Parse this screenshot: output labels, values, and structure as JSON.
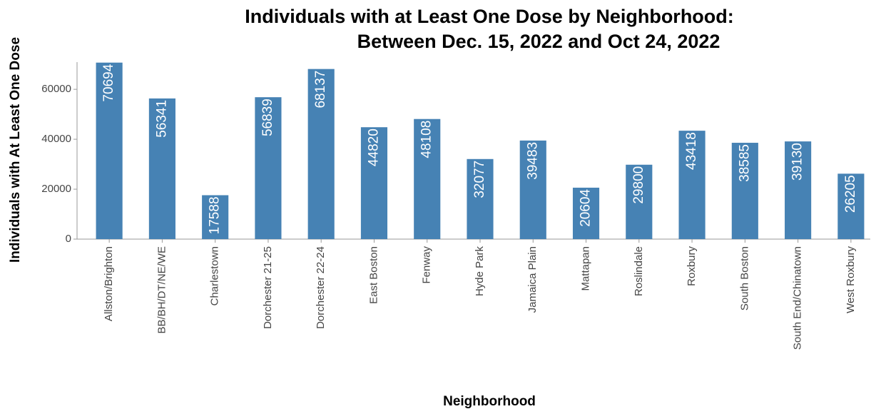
{
  "chart_data": {
    "type": "bar",
    "title": "Individuals with at Least One Dose by Neighborhood:",
    "subtitle": "Between Dec. 15, 2022 and Oct 24, 2022",
    "x_label": "Neighborhood",
    "y_label": "Individuals with At Least One Dose",
    "categories": [
      "Allston/Brighton",
      "BB/BH/DT/NE/WE",
      "Charlestown",
      "Dorchester 21-25",
      "Dorchester 22-24",
      "East Boston",
      "Fenway",
      "Hyde Park",
      "Jamaica Plain",
      "Mattapan",
      "Roslindale",
      "Roxbury",
      "South Boston",
      "South End/Chinatown",
      "West Roxbury"
    ],
    "values": [
      70694,
      56341,
      17588,
      56839,
      68137,
      44820,
      48108,
      32077,
      39483,
      20604,
      29800,
      43418,
      38585,
      39130,
      26205
    ],
    "color": "#4682b4",
    "ylim": [
      0,
      70900
    ],
    "yticks": [
      0,
      20000,
      40000,
      60000
    ],
    "grid": false
  }
}
